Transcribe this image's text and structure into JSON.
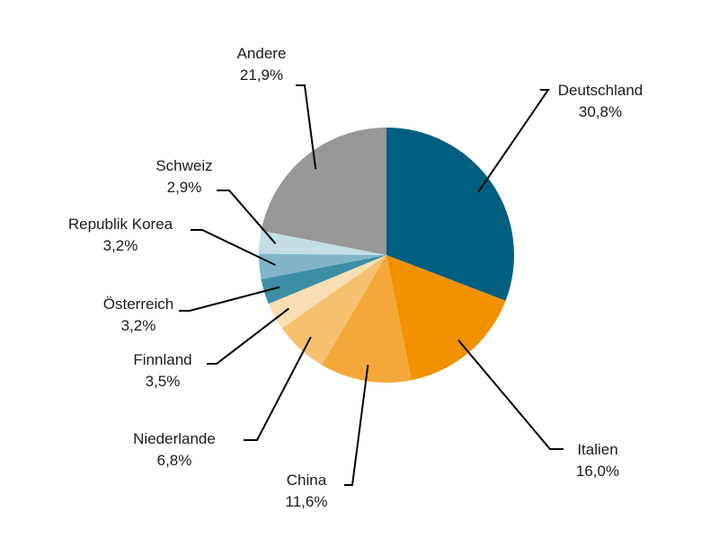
{
  "chart_data": {
    "type": "pie",
    "title": "",
    "start_angle_deg": 0,
    "direction": "clockwise",
    "slices": [
      {
        "label": "Deutschland",
        "value": 30.8,
        "value_label": "30,8%",
        "color": "#005f7f"
      },
      {
        "label": "Italien",
        "value": 16.0,
        "value_label": "16,0%",
        "color": "#f19100"
      },
      {
        "label": "China",
        "value": 11.6,
        "value_label": "11,6%",
        "color": "#f4a83a"
      },
      {
        "label": "Niederlande",
        "value": 6.8,
        "value_label": "6,8%",
        "color": "#f6c16f"
      },
      {
        "label": "Finnland",
        "value": 3.5,
        "value_label": "3,5%",
        "color": "#f9ddb3"
      },
      {
        "label": "Österreich",
        "value": 3.2,
        "value_label": "3,2%",
        "color": "#3b8ea4"
      },
      {
        "label": "Republik Korea",
        "value": 3.2,
        "value_label": "3,2%",
        "color": "#7fb5c6"
      },
      {
        "label": "Schweiz",
        "value": 2.9,
        "value_label": "2,9%",
        "color": "#c4dde5"
      },
      {
        "label": "Andere",
        "value": 21.9,
        "value_label": "21,9%",
        "color": "#979797"
      }
    ]
  }
}
